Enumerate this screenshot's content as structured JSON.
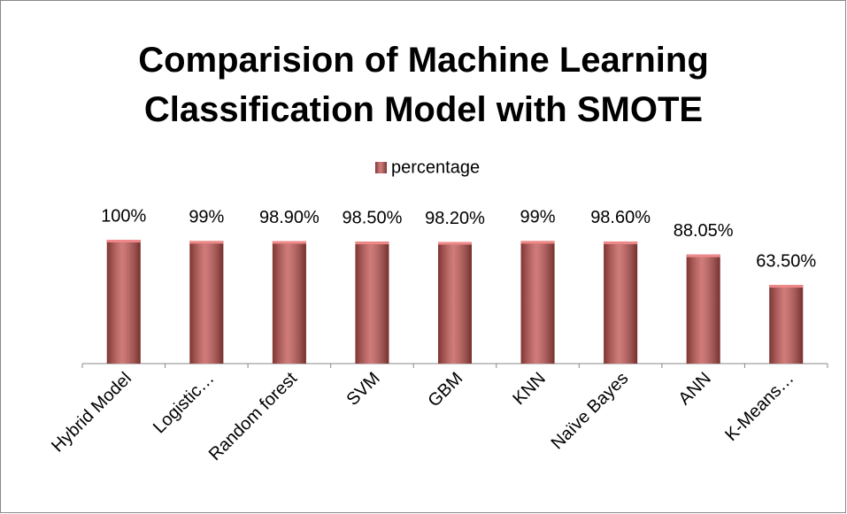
{
  "chart_data": {
    "type": "bar",
    "title": "Comparision of Machine Learning Classification Model with SMOTE",
    "categories": [
      "Hybrid Model",
      "Logistic…",
      "Random forest",
      "SVM",
      "GBM",
      "KNN",
      "Naïve Bayes",
      "ANN",
      "K-Means…"
    ],
    "series": [
      {
        "name": "percentage",
        "color": "#c0504d",
        "values": [
          100,
          99,
          98.9,
          98.5,
          98.2,
          99,
          98.6,
          88.05,
          63.5
        ],
        "value_labels": [
          "100%",
          "99%",
          "98.90%",
          "98.50%",
          "98.20%",
          "99%",
          "98.60%",
          "88.05%",
          "63.50%"
        ]
      }
    ],
    "ylim": [
      0,
      100
    ],
    "legend": "top"
  }
}
